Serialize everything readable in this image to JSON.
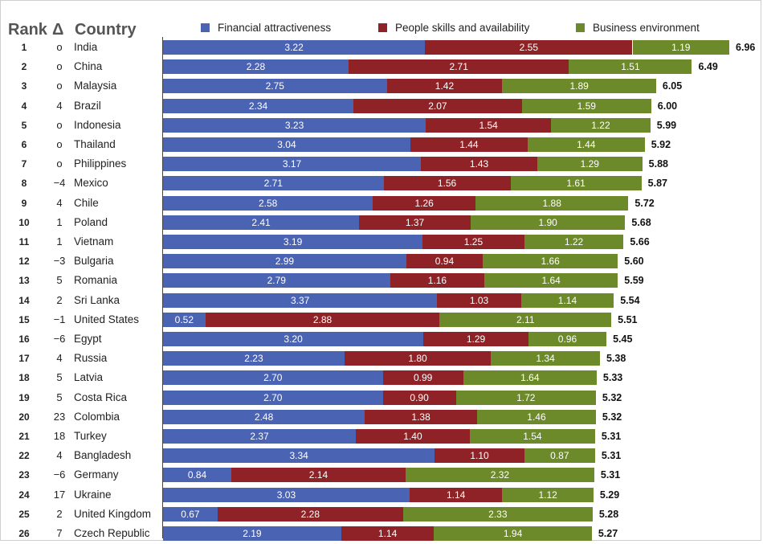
{
  "headers": {
    "rank": "Rank",
    "delta": "Δ",
    "country": "Country"
  },
  "colors": {
    "financial": "#4a63b3",
    "people": "#8e2226",
    "business": "#6d8a2a"
  },
  "chart_data": {
    "type": "bar",
    "orientation": "horizontal",
    "stacked": true,
    "legend_placement": "top",
    "ranks": [
      "1",
      "2",
      "3",
      "4",
      "5",
      "6",
      "7",
      "8",
      "9",
      "10",
      "11",
      "12",
      "13",
      "14",
      "15",
      "16",
      "17",
      "18",
      "19",
      "20",
      "21",
      "22",
      "23",
      "24",
      "25",
      "26"
    ],
    "deltas": [
      "o",
      "o",
      "o",
      "4",
      "o",
      "o",
      "o",
      "−4",
      "4",
      "1",
      "1",
      "−3",
      "5",
      "2",
      "−1",
      "−6",
      "4",
      "5",
      "5",
      "23",
      "18",
      "4",
      "−6",
      "17",
      "2",
      "7"
    ],
    "categories": [
      "India",
      "China",
      "Malaysia",
      "Brazil",
      "Indonesia",
      "Thailand",
      "Philippines",
      "Mexico",
      "Chile",
      "Poland",
      "Vietnam",
      "Bulgaria",
      "Romania",
      "Sri Lanka",
      "United States",
      "Egypt",
      "Russia",
      "Latvia",
      "Costa Rica",
      "Colombia",
      "Turkey",
      "Bangladesh",
      "Germany",
      "Ukraine",
      "United Kingdom",
      "Czech Republic"
    ],
    "series": [
      {
        "name": "Financial attractiveness",
        "values": [
          3.22,
          2.28,
          2.75,
          2.34,
          3.23,
          3.04,
          3.17,
          2.71,
          2.58,
          2.41,
          3.19,
          2.99,
          2.79,
          3.37,
          0.52,
          3.2,
          2.23,
          2.7,
          2.7,
          2.48,
          2.37,
          3.34,
          0.84,
          3.03,
          0.67,
          2.19
        ]
      },
      {
        "name": "People skills and availability",
        "values": [
          2.55,
          2.71,
          1.42,
          2.07,
          1.54,
          1.44,
          1.43,
          1.56,
          1.26,
          1.37,
          1.25,
          0.94,
          1.16,
          1.03,
          2.88,
          1.29,
          1.8,
          0.99,
          0.9,
          1.38,
          1.4,
          1.1,
          2.14,
          1.14,
          2.28,
          1.14
        ]
      },
      {
        "name": "Business environment",
        "values": [
          1.19,
          1.51,
          1.89,
          1.59,
          1.22,
          1.44,
          1.29,
          1.61,
          1.88,
          1.9,
          1.22,
          1.66,
          1.64,
          1.14,
          2.11,
          0.96,
          1.34,
          1.64,
          1.72,
          1.46,
          1.54,
          0.87,
          2.32,
          1.12,
          2.33,
          1.94
        ]
      }
    ],
    "labels": [
      [
        "3.22",
        "2.55",
        "1.19"
      ],
      [
        "2.28",
        "2.71",
        "1.51"
      ],
      [
        "2.75",
        "1.42",
        "1.89"
      ],
      [
        "2.34",
        "2.07",
        "1.59"
      ],
      [
        "3.23",
        "1.54",
        "1.22"
      ],
      [
        "3.04",
        "1.44",
        "1.44"
      ],
      [
        "3.17",
        "1.43",
        "1.29"
      ],
      [
        "2.71",
        "1.56",
        "1.61"
      ],
      [
        "2.58",
        "1.26",
        "1.88"
      ],
      [
        "2.41",
        "1.37",
        "1.90"
      ],
      [
        "3.19",
        "1.25",
        "1.22"
      ],
      [
        "2.99",
        "0.94",
        "1.66"
      ],
      [
        "2.79",
        "1.16",
        "1.64"
      ],
      [
        "3.37",
        "1.03",
        "1.14"
      ],
      [
        "0.52",
        "2.88",
        "2.11"
      ],
      [
        "3.20",
        "1.29",
        "0.96"
      ],
      [
        "2.23",
        "1.80",
        "1.34"
      ],
      [
        "2.70",
        "0.99",
        "1.64"
      ],
      [
        "2.70",
        "0.90",
        "1.72"
      ],
      [
        "2.48",
        "1.38",
        "1.46"
      ],
      [
        "2.37",
        "1.40",
        "1.54"
      ],
      [
        "3.34",
        "1.10",
        "0.87"
      ],
      [
        "0.84",
        "2.14",
        "2.32"
      ],
      [
        "3.03",
        "1.14",
        "1.12"
      ],
      [
        "0.67",
        "2.28",
        "2.33"
      ],
      [
        "2.19",
        "1.14",
        "1.94"
      ]
    ],
    "totals": [
      "6.96",
      "6.49",
      "6.05",
      "6.00",
      "5.99",
      "5.92",
      "5.88",
      "5.87",
      "5.72",
      "5.68",
      "5.66",
      "5.60",
      "5.59",
      "5.54",
      "5.51",
      "5.45",
      "5.38",
      "5.33",
      "5.32",
      "5.32",
      "5.31",
      "5.31",
      "5.31",
      "5.29",
      "5.28",
      "5.27"
    ],
    "xlim": [
      0,
      7
    ]
  }
}
